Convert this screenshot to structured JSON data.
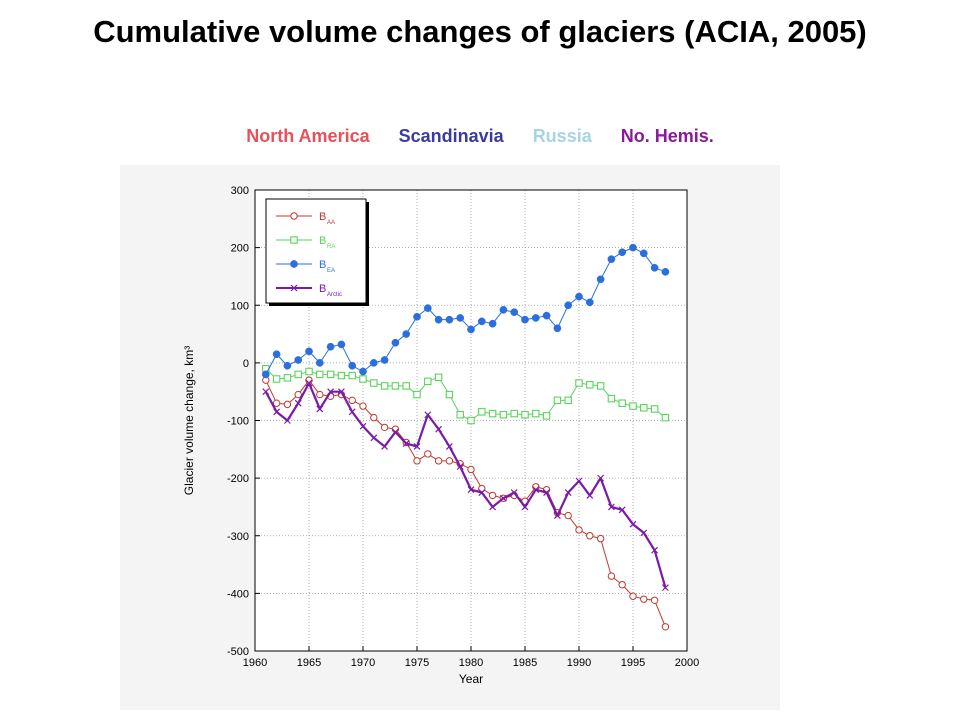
{
  "title": "Cumulative volume changes of glaciers (ACIA, 2005)",
  "regions": [
    {
      "label": "North America",
      "color": "#e8505a"
    },
    {
      "label": "Scandinavia",
      "color": "#3a3aa0"
    },
    {
      "label": "Russia",
      "color": "#a8d4e4"
    },
    {
      "label": "No. Hemis.",
      "color": "#8a1a9a"
    }
  ],
  "chart_data": {
    "type": "line",
    "xlabel": "Year",
    "ylabel": "Glacier volume change, km³",
    "xlim": [
      1960,
      2000
    ],
    "ylim": [
      -500,
      300
    ],
    "xticks": [
      1960,
      1965,
      1970,
      1975,
      1980,
      1985,
      1990,
      1995,
      2000
    ],
    "yticks": [
      300,
      200,
      100,
      0,
      -100,
      -200,
      -300,
      -400,
      -500
    ],
    "grid": true,
    "legend_position": "top-left",
    "x": [
      1961,
      1962,
      1963,
      1964,
      1965,
      1966,
      1967,
      1968,
      1969,
      1970,
      1971,
      1972,
      1973,
      1974,
      1975,
      1976,
      1977,
      1978,
      1979,
      1980,
      1981,
      1982,
      1983,
      1984,
      1985,
      1986,
      1987,
      1988,
      1989,
      1990,
      1991,
      1992,
      1993,
      1994,
      1995,
      1996,
      1997,
      1998
    ],
    "series": [
      {
        "name": "B",
        "subscript": "AA",
        "color": "#c0392b",
        "marker": "circle-open",
        "values": [
          -30,
          -70,
          -72,
          -55,
          -30,
          -55,
          -58,
          -55,
          -65,
          -75,
          -95,
          -112,
          -115,
          -138,
          -170,
          -158,
          -170,
          -170,
          -175,
          -185,
          -218,
          -230,
          -235,
          -230,
          -240,
          -215,
          -220,
          -260,
          -265,
          -290,
          -300,
          -305,
          -370,
          -385,
          -405,
          -410,
          -412,
          -458
        ]
      },
      {
        "name": "B",
        "subscript": "RA",
        "color": "#5ad45a",
        "marker": "square-open",
        "values": [
          -10,
          -28,
          -26,
          -20,
          -15,
          -20,
          -20,
          -22,
          -22,
          -28,
          -35,
          -40,
          -40,
          -40,
          -55,
          -32,
          -25,
          -55,
          -90,
          -100,
          -85,
          -88,
          -90,
          -88,
          -90,
          -88,
          -92,
          -65,
          -65,
          -35,
          -38,
          -40,
          -62,
          -70,
          -75,
          -78,
          -80,
          -95
        ]
      },
      {
        "name": "B",
        "subscript": "EA",
        "color": "#2a6ee0",
        "marker": "circle-filled",
        "values": [
          -20,
          15,
          -5,
          5,
          20,
          0,
          28,
          32,
          -5,
          -15,
          0,
          5,
          35,
          50,
          80,
          95,
          75,
          75,
          78,
          58,
          72,
          68,
          92,
          88,
          75,
          78,
          82,
          60,
          100,
          115,
          105,
          145,
          180,
          192,
          200,
          190,
          165,
          158
        ]
      },
      {
        "name": "B",
        "subscript": "Arctic",
        "color": "#7a1aa8",
        "marker": "x",
        "values": [
          -50,
          -85,
          -100,
          -70,
          -35,
          -80,
          -50,
          -50,
          -85,
          -110,
          -130,
          -145,
          -120,
          -140,
          -145,
          -90,
          -115,
          -145,
          -180,
          -220,
          -225,
          -250,
          -235,
          -225,
          -250,
          -220,
          -225,
          -265,
          -225,
          -205,
          -230,
          -200,
          -250,
          -255,
          -280,
          -295,
          -325,
          -390
        ]
      }
    ]
  }
}
